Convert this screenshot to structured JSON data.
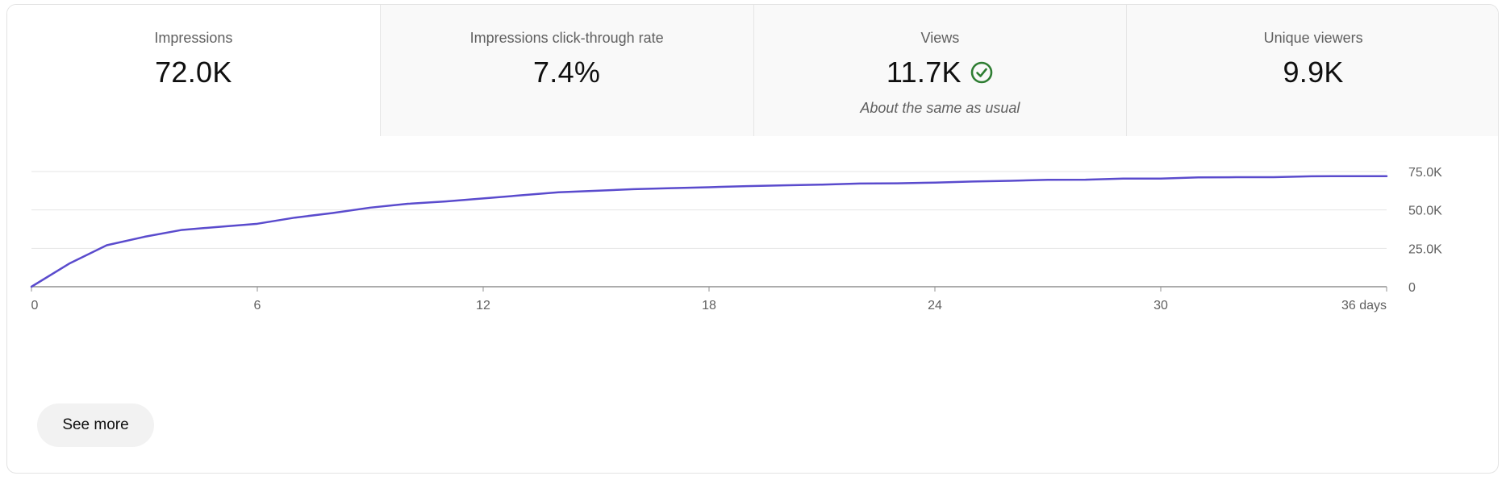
{
  "tabs": [
    {
      "label": "Impressions",
      "value": "72.0K",
      "note": "",
      "selected": true
    },
    {
      "label": "Impressions click-through rate",
      "value": "7.4%",
      "note": "",
      "selected": false
    },
    {
      "label": "Views",
      "value": "11.7K",
      "note": "About the same as usual",
      "selected": false,
      "icon": "check-circle-icon"
    },
    {
      "label": "Unique viewers",
      "value": "9.9K",
      "note": "",
      "selected": false
    }
  ],
  "colors": {
    "line": "#5a4bcd",
    "check": "#2e7d32",
    "grid": "#e5e5e5",
    "axis": "#909090"
  },
  "see_more_label": "See more",
  "chart_data": {
    "type": "line",
    "x": [
      0,
      1,
      2,
      3,
      4,
      5,
      6,
      7,
      8,
      9,
      10,
      11,
      12,
      13,
      14,
      15,
      16,
      17,
      18,
      19,
      20,
      21,
      22,
      23,
      24,
      25,
      26,
      27,
      28,
      29,
      30,
      31,
      32,
      33,
      34,
      35,
      36
    ],
    "series": [
      {
        "values": [
          0,
          15000,
          27000,
          32500,
          37000,
          39000,
          41000,
          45000,
          48000,
          51500,
          54000,
          55500,
          57500,
          59500,
          61500,
          62500,
          63500,
          64200,
          64800,
          65500,
          66000,
          66500,
          67200,
          67300,
          67800,
          68500,
          69000,
          69600,
          69700,
          70400,
          70400,
          71200,
          71300,
          71300,
          71900,
          72000,
          72000
        ]
      }
    ],
    "xticks": [
      0,
      6,
      12,
      18,
      24,
      30,
      36
    ],
    "xtick_labels": [
      "0",
      "6",
      "12",
      "18",
      "24",
      "30",
      "36 days"
    ],
    "yticks": [
      0,
      25000,
      50000,
      75000
    ],
    "ytick_labels": [
      "0",
      "25.0K",
      "50.0K",
      "75.0K"
    ],
    "xlim": [
      0,
      36
    ],
    "ylim": [
      0,
      75000
    ],
    "grid": true,
    "legend": "none"
  }
}
